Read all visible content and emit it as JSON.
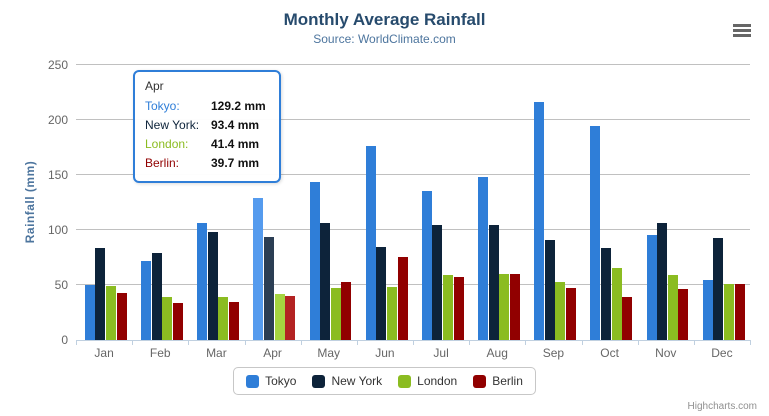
{
  "header": {
    "title": "Monthly Average Rainfall",
    "subtitle": "Source: WorldClimate.com"
  },
  "credits": "Highcharts.com",
  "chart_data": {
    "type": "bar",
    "title": "Monthly Average Rainfall",
    "subtitle": "Source: WorldClimate.com",
    "xlabel": "",
    "ylabel": "Rainfall (mm)",
    "ylim": [
      0,
      250
    ],
    "ytick_interval": 50,
    "grid": true,
    "legend_position": "bottom",
    "categories": [
      "Jan",
      "Feb",
      "Mar",
      "Apr",
      "May",
      "Jun",
      "Jul",
      "Aug",
      "Sep",
      "Oct",
      "Nov",
      "Dec"
    ],
    "highlighted_category": "Apr",
    "series": [
      {
        "name": "Tokyo",
        "color": "#2f7ed8",
        "hover_color": "#559bee",
        "values": [
          49.9,
          71.5,
          106.4,
          129.2,
          144.0,
          176.0,
          135.6,
          148.5,
          216.4,
          194.1,
          95.6,
          54.4
        ]
      },
      {
        "name": "New York",
        "color": "#0d233a",
        "hover_color": "#2b3e54",
        "values": [
          83.6,
          78.8,
          98.5,
          93.4,
          106.0,
          84.5,
          105.0,
          104.3,
          91.2,
          83.5,
          106.6,
          92.3
        ]
      },
      {
        "name": "London",
        "color": "#8bbc21",
        "hover_color": "#a5d440",
        "values": [
          48.9,
          38.8,
          39.3,
          41.4,
          47.0,
          48.3,
          59.0,
          59.6,
          52.4,
          65.2,
          59.3,
          51.2
        ]
      },
      {
        "name": "Berlin",
        "color": "#910000",
        "hover_color": "#b32222",
        "values": [
          42.4,
          33.2,
          34.5,
          39.7,
          52.6,
          75.5,
          57.4,
          60.4,
          47.6,
          39.1,
          46.8,
          51.1
        ]
      }
    ]
  },
  "tooltip": {
    "header": "Apr",
    "border_color": "#2f7ed8",
    "rows": [
      {
        "label": "Tokyo:",
        "value": "129.2 mm",
        "color": "#2f7ed8"
      },
      {
        "label": "New York:",
        "value": "93.4 mm",
        "color": "#0d233a"
      },
      {
        "label": "London:",
        "value": "41.4 mm",
        "color": "#8bbc21"
      },
      {
        "label": "Berlin:",
        "value": "39.7 mm",
        "color": "#910000"
      }
    ]
  }
}
